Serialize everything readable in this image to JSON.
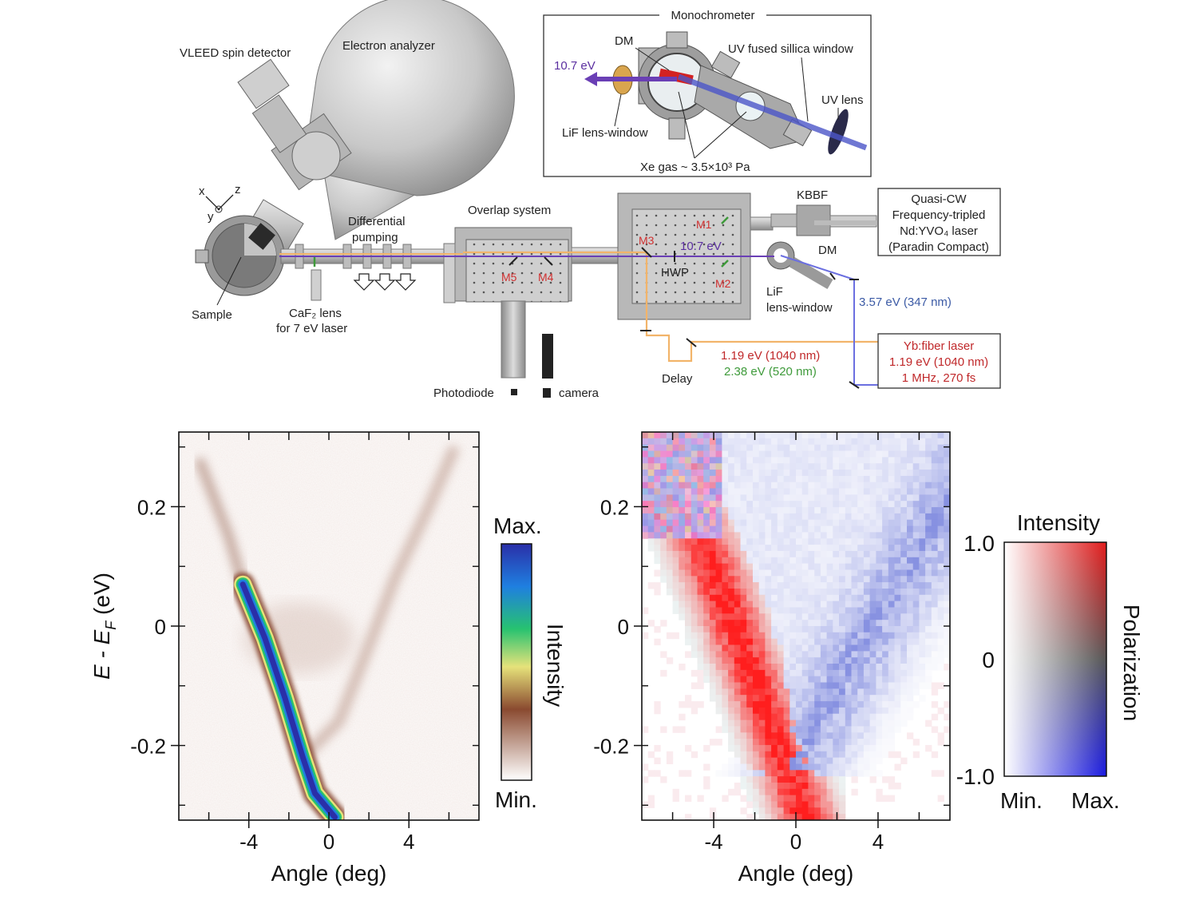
{
  "schematic": {
    "monochrometer": {
      "title": "Monochrometer",
      "dm": "DM",
      "beam_out": "10.7 eV",
      "window": "UV fused sillica window",
      "uv_lens": "UV lens",
      "lif": "LiF lens-window",
      "gas": "Xe gas ~ 3.5×10³ Pa"
    },
    "vleed": "VLEED spin detector",
    "analyzer": "Electron analyzer",
    "axes": {
      "x": "x",
      "y": "y",
      "z": "z"
    },
    "sample": "Sample",
    "caf2_line1": "CaF₂ lens",
    "caf2_line2": "for 7 eV laser",
    "diff_line1": "Differential",
    "diff_line2": "pumping",
    "overlap": "Overlap system",
    "mirrors": {
      "m1": "M1",
      "m2": "M2",
      "m3": "M3",
      "m4": "M4",
      "m5": "M5"
    },
    "beam_10_7": "10.7 eV",
    "hwp": "HWP",
    "kbbf": "KBBF",
    "dm2": "DM",
    "lif2_line1": "LiF",
    "lif2_line2": "lens-window",
    "quasi_cw": [
      "Quasi-CW",
      "Frequency-tripled",
      "Nd:YVO₄ laser",
      "(Paradin Compact)"
    ],
    "uv_347": "3.57 eV (347 nm)",
    "yb": [
      "Yb:fiber laser",
      "1.19 eV (1040 nm)",
      "1 MHz, 270 fs"
    ],
    "ir": "1.19 eV (1040 nm)",
    "green": "2.38 eV (520 nm)",
    "delay": "Delay",
    "photodiode": "Photodiode",
    "camera": "camera"
  },
  "colors": {
    "beam_violet": "#6a3fb5",
    "beam_orange": "#f2b46a",
    "beam_blue": "#6b6fe0",
    "laser_red": "#c0282a",
    "laser_green": "#3e9a3a"
  },
  "chart_data": [
    {
      "type": "heatmap",
      "title": "",
      "xlabel": "Angle (deg)",
      "ylabel_main": "E - E",
      "ylabel_sub": "F",
      "ylabel_unit": " (eV)",
      "xlim": [
        -7.5,
        7.5
      ],
      "ylim": [
        -0.325,
        0.325
      ],
      "xticks": [
        -4,
        0,
        4
      ],
      "xtick_labels": [
        "-4",
        "0",
        "4"
      ],
      "yticks": [
        0.2,
        0,
        -0.2
      ],
      "ytick_labels": [
        "0.2",
        "0",
        "-0.2"
      ],
      "bands": [
        {
          "name": "",
          "points": [
            [
              -4.3,
              0.07
            ],
            [
              -3.2,
              -0.02
            ],
            [
              -2.2,
              -0.12
            ],
            [
              -1.3,
              -0.22
            ],
            [
              -0.7,
              -0.28
            ],
            [
              0.3,
              -0.32
            ]
          ]
        },
        {
          "name": "",
          "points": [
            [
              -6.5,
              0.28
            ],
            [
              -5.0,
              0.15
            ],
            [
              -4.3,
              0.07
            ]
          ]
        },
        {
          "name": "",
          "points": [
            [
              -1.3,
              -0.22
            ],
            [
              0.5,
              -0.16
            ],
            [
              1.8,
              -0.05
            ],
            [
              3.3,
              0.08
            ],
            [
              5.0,
              0.2
            ],
            [
              6.3,
              0.3
            ]
          ]
        }
      ],
      "colorbar": {
        "max_label": "Max.",
        "min_label": "Min.",
        "title": "Intensity",
        "stops": [
          "#2a2fa8",
          "#1f7fe0",
          "#27c270",
          "#e6e27a",
          "#8a4a30",
          "#ffffff"
        ]
      }
    },
    {
      "type": "heatmap",
      "title": "",
      "xlabel": "Angle (deg)",
      "xlim": [
        -7.5,
        7.5
      ],
      "ylim": [
        -0.325,
        0.325
      ],
      "xticks": [
        -4,
        0,
        4
      ],
      "xtick_labels": [
        "-4",
        "0",
        "4"
      ],
      "yticks": [
        0.2,
        0,
        -0.2
      ],
      "ytick_labels": [
        "0.2",
        "0",
        "-0.2"
      ],
      "polarization_note": "red branch along lower-left band, blue along V-shaped outer branches",
      "colorbar": {
        "title": "Intensity",
        "axis_title": "Polarization",
        "ytick_labels": [
          "1.0",
          "0",
          "-1.0"
        ],
        "x_min_label": "Min.",
        "x_max_label": "Max.",
        "corner_colors": {
          "top_right": "#e21a1a",
          "bottom_right": "#1a1ae2",
          "mid_right": "#555555",
          "left": "#ffffff"
        }
      }
    }
  ]
}
